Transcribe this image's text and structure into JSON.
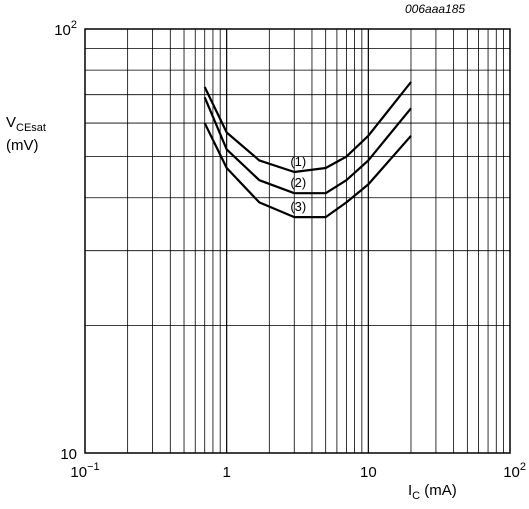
{
  "figure_id": "006aaa185",
  "chart_data": {
    "type": "line",
    "title": "",
    "xlabel": {
      "symbol": "I",
      "sub": "C",
      "unit": "(mA)"
    },
    "ylabel": {
      "symbol": "V",
      "sub": "CEsat",
      "unit": "(mV)"
    },
    "x_scale": "log",
    "y_scale": "log",
    "xlim": [
      0.1,
      100
    ],
    "ylim": [
      10,
      100
    ],
    "grid": true,
    "legend": "none",
    "x_ticks": [
      {
        "value": 0.1,
        "base": "10",
        "exp": "−1"
      },
      {
        "value": 1,
        "base": "1",
        "exp": ""
      },
      {
        "value": 10,
        "base": "10",
        "exp": ""
      },
      {
        "value": 100,
        "base": "10",
        "exp": "2"
      }
    ],
    "y_ticks": [
      {
        "value": 10,
        "base": "10",
        "exp": ""
      },
      {
        "value": 100,
        "base": "10",
        "exp": "2"
      }
    ],
    "series": [
      {
        "name": "(1)",
        "x": [
          0.7,
          1.0,
          1.7,
          3.0,
          5.0,
          7.0,
          10.0,
          20.0
        ],
        "y": [
          73,
          57,
          49,
          46,
          47,
          50,
          56,
          75
        ]
      },
      {
        "name": "(2)",
        "x": [
          0.7,
          1.0,
          1.7,
          3.0,
          5.0,
          7.0,
          10.0,
          20.0
        ],
        "y": [
          69,
          52,
          44,
          41,
          41,
          44,
          49,
          65
        ]
      },
      {
        "name": "(3)",
        "x": [
          0.7,
          1.0,
          1.7,
          3.0,
          5.0,
          7.0,
          10.0,
          20.0
        ],
        "y": [
          60,
          47,
          39,
          36,
          36,
          39,
          43,
          56
        ]
      }
    ]
  }
}
